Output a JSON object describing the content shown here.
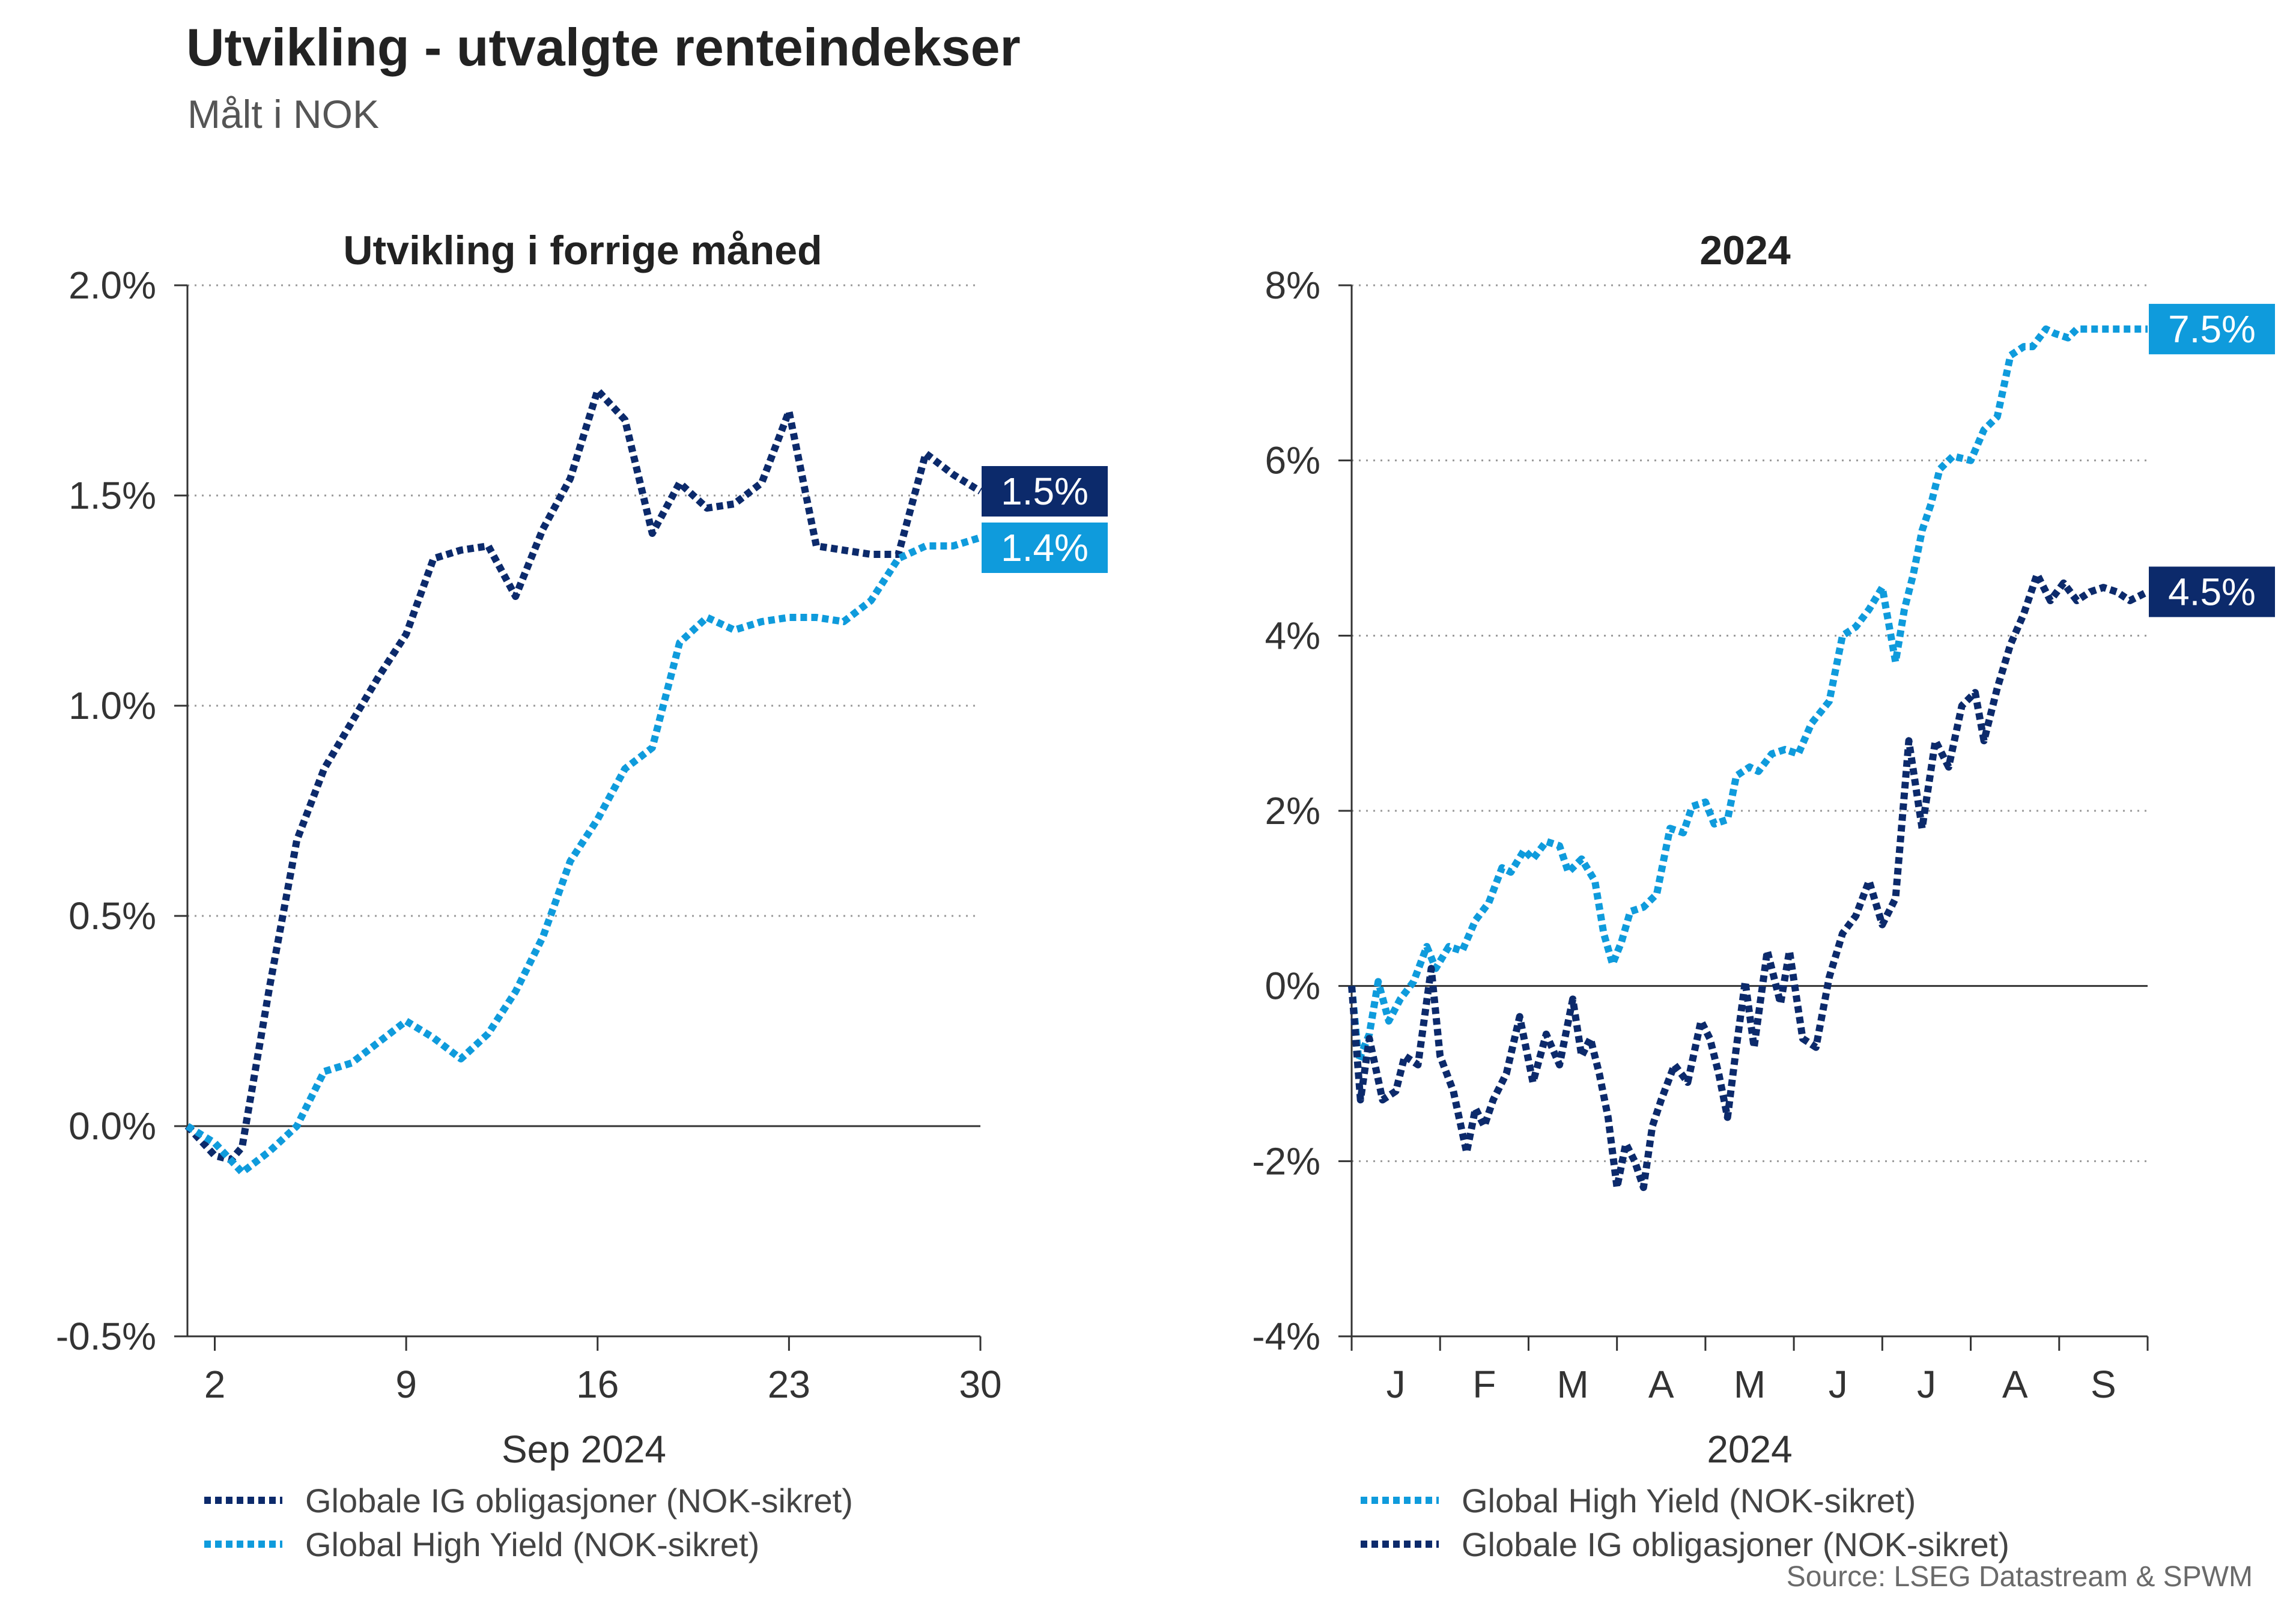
{
  "header": {
    "title": "Utvikling - utvalgte renteindekser",
    "subtitle": "Målt i NOK"
  },
  "source": "Source: LSEG Datastream & SPWM",
  "colors": {
    "ig": "#0c2a6b",
    "hy": "#0f9bdc",
    "grid": "#9a9a9a",
    "axis": "#333333"
  },
  "chart_data": [
    {
      "type": "line",
      "title": "Utvikling i forrige måned",
      "xlabel": "Sep 2024",
      "ylabel": "",
      "x_range": [
        1,
        30
      ],
      "ylim": [
        -0.5,
        2.0
      ],
      "y_ticks": [
        -0.5,
        0.0,
        0.5,
        1.0,
        1.5,
        2.0
      ],
      "y_tick_labels": [
        "-0.5%",
        "0.0%",
        "0.5%",
        "1.0%",
        "1.5%",
        "2.0%"
      ],
      "x_ticks": [
        2,
        9,
        16,
        23,
        30
      ],
      "x_tick_labels": [
        "2",
        "9",
        "16",
        "23",
        "30"
      ],
      "grid": "horizontal dotted",
      "series": [
        {
          "name": "Globale IG obligasjoner (NOK-sikret)",
          "color": "#0c2a6b",
          "end_label": "1.5%",
          "x": [
            1,
            2,
            2.6,
            3,
            4,
            5,
            6,
            7,
            8,
            9,
            10,
            11,
            12,
            13,
            14,
            15,
            16,
            17,
            18,
            19,
            20,
            21,
            22,
            23,
            24,
            25,
            26,
            27,
            28,
            29,
            30
          ],
          "values": [
            0.0,
            -0.07,
            -0.08,
            -0.05,
            0.33,
            0.68,
            0.85,
            0.96,
            1.07,
            1.17,
            1.35,
            1.37,
            1.38,
            1.26,
            1.42,
            1.54,
            1.75,
            1.68,
            1.41,
            1.53,
            1.47,
            1.48,
            1.53,
            1.7,
            1.38,
            1.37,
            1.36,
            1.36,
            1.6,
            1.55,
            1.51
          ]
        },
        {
          "name": "Global High Yield (NOK-sikret)",
          "color": "#0f9bdc",
          "end_label": "1.4%",
          "x": [
            1,
            2,
            3,
            4,
            5,
            6,
            7,
            8,
            9,
            10,
            11,
            12,
            13,
            14,
            15,
            16,
            17,
            18,
            19,
            20,
            21,
            22,
            23,
            24,
            25,
            26,
            27,
            28,
            29,
            30
          ],
          "values": [
            0.0,
            -0.04,
            -0.11,
            -0.06,
            0.0,
            0.13,
            0.15,
            0.2,
            0.25,
            0.21,
            0.16,
            0.22,
            0.32,
            0.45,
            0.63,
            0.73,
            0.85,
            0.9,
            1.15,
            1.21,
            1.18,
            1.2,
            1.21,
            1.21,
            1.2,
            1.25,
            1.35,
            1.38,
            1.38,
            1.4
          ]
        }
      ]
    },
    {
      "type": "line",
      "title": "2024",
      "xlabel": "2024",
      "ylabel": "",
      "x_range": [
        0,
        9
      ],
      "ylim": [
        -4,
        8
      ],
      "y_ticks": [
        -4,
        -2,
        0,
        2,
        4,
        6,
        8
      ],
      "y_tick_labels": [
        "-4%",
        "-2%",
        "0%",
        "2%",
        "4%",
        "6%",
        "8%"
      ],
      "month_labels": [
        "J",
        "F",
        "M",
        "A",
        "M",
        "J",
        "J",
        "A",
        "S"
      ],
      "grid": "horizontal dotted",
      "series": [
        {
          "name": "Global High Yield (NOK-sikret)",
          "color": "#0f9bdc",
          "end_label": "7.5%",
          "x": [
            0,
            0.08,
            0.2,
            0.3,
            0.42,
            0.55,
            0.7,
            0.85,
            0.95,
            1.1,
            1.25,
            1.4,
            1.55,
            1.7,
            1.8,
            1.95,
            2.05,
            2.2,
            2.35,
            2.45,
            2.6,
            2.75,
            2.85,
            2.95,
            3.05,
            3.15,
            3.3,
            3.45,
            3.6,
            3.75,
            3.85,
            4.0,
            4.1,
            4.25,
            4.35,
            4.5,
            4.6,
            4.75,
            4.9,
            5.05,
            5.2,
            5.4,
            5.55,
            5.7,
            5.85,
            6.0,
            6.15,
            6.25,
            6.35,
            6.45,
            6.55,
            6.65,
            6.8,
            7.0,
            7.15,
            7.3,
            7.45,
            7.6,
            7.7,
            7.85,
            7.95,
            8.1,
            8.2,
            8.35,
            8.5,
            8.65,
            8.8,
            8.9,
            9.0
          ],
          "values": [
            0.0,
            -0.85,
            -0.55,
            0.05,
            -0.4,
            -0.15,
            0.05,
            0.45,
            0.2,
            0.45,
            0.4,
            0.75,
            0.95,
            1.35,
            1.3,
            1.55,
            1.45,
            1.65,
            1.6,
            1.3,
            1.45,
            1.2,
            0.6,
            0.25,
            0.5,
            0.85,
            0.9,
            1.05,
            1.8,
            1.75,
            2.05,
            2.1,
            1.85,
            1.9,
            2.4,
            2.5,
            2.45,
            2.65,
            2.7,
            2.65,
            3.0,
            3.25,
            4.0,
            4.1,
            4.3,
            4.55,
            3.7,
            4.3,
            4.7,
            5.2,
            5.5,
            5.9,
            6.05,
            6.0,
            6.35,
            6.5,
            7.2,
            7.3,
            7.3,
            7.5,
            7.45,
            7.4,
            7.5,
            7.5,
            7.5,
            7.5,
            7.5,
            7.5,
            7.5
          ]
        },
        {
          "name": "Globale IG obligasjoner (NOK-sikret)",
          "color": "#0c2a6b",
          "end_label": "4.5%",
          "x": [
            0,
            0.1,
            0.2,
            0.35,
            0.5,
            0.6,
            0.75,
            0.9,
            1.0,
            1.15,
            1.3,
            1.4,
            1.5,
            1.6,
            1.75,
            1.9,
            2.05,
            2.2,
            2.35,
            2.5,
            2.6,
            2.7,
            2.8,
            2.9,
            3.0,
            3.1,
            3.2,
            3.3,
            3.4,
            3.5,
            3.65,
            3.8,
            3.95,
            4.05,
            4.15,
            4.25,
            4.35,
            4.45,
            4.55,
            4.7,
            4.85,
            4.95,
            5.1,
            5.25,
            5.4,
            5.55,
            5.7,
            5.85,
            6.0,
            6.15,
            6.3,
            6.45,
            6.6,
            6.75,
            6.9,
            7.05,
            7.15,
            7.3,
            7.45,
            7.6,
            7.75,
            7.9,
            8.05,
            8.2,
            8.35,
            8.5,
            8.65,
            8.8,
            9.0
          ],
          "values": [
            0.0,
            -1.3,
            -0.6,
            -1.3,
            -1.2,
            -0.8,
            -0.9,
            0.2,
            -0.8,
            -1.2,
            -1.9,
            -1.4,
            -1.6,
            -1.3,
            -1.0,
            -0.35,
            -1.1,
            -0.55,
            -0.9,
            -0.15,
            -0.8,
            -0.6,
            -1.0,
            -1.5,
            -2.3,
            -1.8,
            -2.0,
            -2.3,
            -1.6,
            -1.3,
            -0.9,
            -1.1,
            -0.4,
            -0.6,
            -1.0,
            -1.5,
            -0.7,
            0.05,
            -0.7,
            0.4,
            -0.2,
            0.4,
            -0.6,
            -0.7,
            0.1,
            0.6,
            0.8,
            1.2,
            0.7,
            1.0,
            2.8,
            1.8,
            2.8,
            2.5,
            3.2,
            3.35,
            2.8,
            3.4,
            3.9,
            4.25,
            4.7,
            4.4,
            4.6,
            4.4,
            4.5,
            4.55,
            4.5,
            4.4,
            4.5
          ]
        }
      ]
    }
  ],
  "legend_left": [
    {
      "label": "Globale IG obligasjoner (NOK-sikret)",
      "color": "#0c2a6b"
    },
    {
      "label": "Global High Yield (NOK-sikret)",
      "color": "#0f9bdc"
    }
  ],
  "legend_right": [
    {
      "label": "Global High Yield (NOK-sikret)",
      "color": "#0f9bdc"
    },
    {
      "label": "Globale IG obligasjoner (NOK-sikret)",
      "color": "#0c2a6b"
    }
  ]
}
